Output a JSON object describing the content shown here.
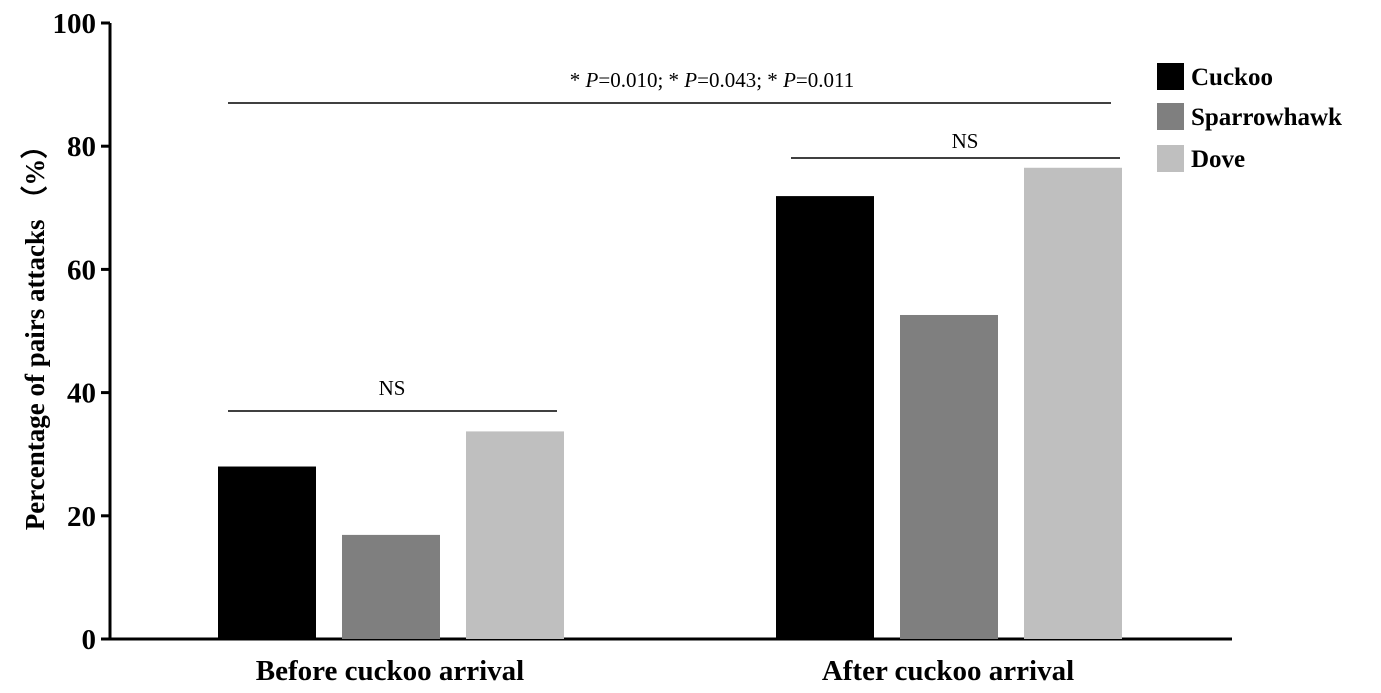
{
  "chart_data": {
    "type": "bar",
    "title": "",
    "xlabel": "",
    "ylabel": "Percentage of pairs attacks （%）",
    "ylim": [
      0,
      100
    ],
    "yticks": [
      "0",
      "20",
      "40",
      "60",
      "80",
      "100"
    ],
    "categories": [
      "Before cuckoo arrival",
      "After cuckoo arrival"
    ],
    "series": [
      {
        "name": "Cuckoo",
        "color": "#000000",
        "values": [
          28.0,
          71.9
        ]
      },
      {
        "name": "Sparrowhawk",
        "color": "#7f7f7f",
        "values": [
          16.9,
          52.6
        ]
      },
      {
        "name": "Dove",
        "color": "#bfbfbf",
        "values": [
          33.7,
          76.5
        ]
      }
    ],
    "legend_position": "top-right",
    "grid": false,
    "annotations": {
      "overall_prefix": "* ",
      "p_symbol": "P",
      "p1": "=0.010; * ",
      "p2": "=0.043; * ",
      "p3": "=0.011",
      "group1": "NS",
      "group2": "NS"
    }
  }
}
